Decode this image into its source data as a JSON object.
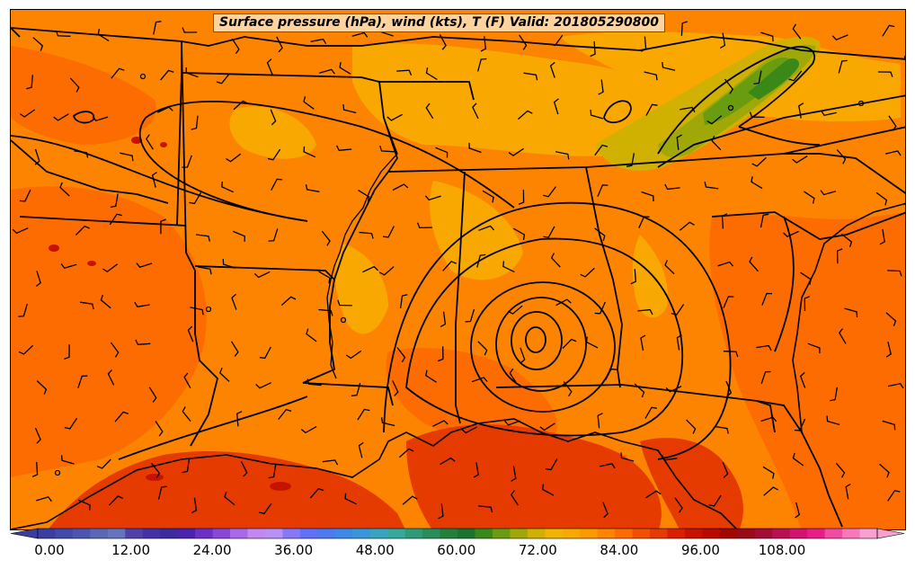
{
  "title": "Surface pressure (hPa), wind (kts), T (F) Valid: 201805290800",
  "colorbar": {
    "tick_labels": [
      "0.00",
      "12.00",
      "24.00",
      "36.00",
      "48.00",
      "60.00",
      "72.00",
      "84.00",
      "96.00",
      "108.00"
    ],
    "tick_values": [
      0,
      12,
      24,
      36,
      48,
      60,
      72,
      84,
      96,
      108
    ],
    "min": 0,
    "max": 120,
    "step": 3,
    "colors": [
      "#3a3ea0",
      "#4349a8",
      "#4d55b0",
      "#5a66b8",
      "#6674c0",
      "#5040a8",
      "#4630a8",
      "#3c2aa0",
      "#4a22b0",
      "#6a30c8",
      "#8a48d8",
      "#a868e8",
      "#c088f0",
      "#b890f8",
      "#8878f8",
      "#6070f8",
      "#4c7af0",
      "#3e88e8",
      "#3a96d8",
      "#3aa4c0",
      "#36a89c",
      "#2f9a7a",
      "#288c5c",
      "#22803c",
      "#1a7430",
      "#3a8818",
      "#6a9c10",
      "#a0a808",
      "#d0b000",
      "#f0b400",
      "#f8a800",
      "#fd9a00",
      "#fd8400",
      "#fd6c00",
      "#f25000",
      "#e53a00",
      "#d82000",
      "#c81200",
      "#b80a00",
      "#a00800",
      "#980c18",
      "#a40c38",
      "#b81050",
      "#d01470",
      "#e81e88",
      "#f04ca0",
      "#f878b8",
      "#f8a0d0"
    ]
  },
  "map": {
    "labels": [
      "Surface pressure (hPa)",
      "wind (kts)",
      "T (F)"
    ],
    "colors": {
      "base_temp": "#fd8400",
      "warm_temp": "#fd6c00",
      "gulf_temp": "#e53a00",
      "hot_spot": "#c81200",
      "cool_temp": "#f8a800",
      "highland_temp": "#d0b000",
      "mountain_temp": "#a0a808",
      "ridge_temp": "#6a9c10",
      "lines": "#000000"
    }
  }
}
